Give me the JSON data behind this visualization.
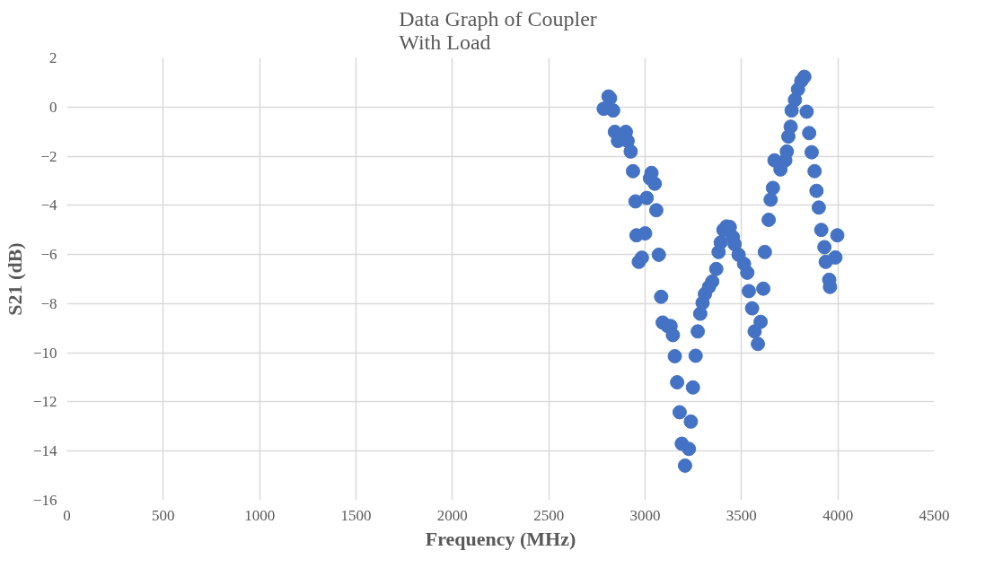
{
  "chart_data": {
    "type": "scatter",
    "title": "Data Graph  of Coupler\nWith Load",
    "xlabel": "Frequency (MHz)",
    "ylabel": "S21 (dB)",
    "xlim": [
      0,
      4500
    ],
    "xticks": [
      0,
      500,
      1000,
      1500,
      2000,
      2500,
      3000,
      3500,
      4000,
      4500
    ],
    "ylim": [
      -16,
      2
    ],
    "yticks": [
      -16,
      -14,
      -12,
      -10,
      -8,
      -6,
      -4,
      -2,
      0,
      2
    ],
    "grid": true,
    "marker": "circle",
    "series": [
      {
        "color": "#4472c4",
        "x": [
          2785,
          2810,
          2818,
          2834,
          2843,
          2859,
          2900,
          2909,
          2925,
          2937,
          2950,
          2955,
          2967,
          2983,
          3000,
          3008,
          3025,
          3033,
          3050,
          3058,
          3071,
          3083,
          3091,
          3116,
          3132,
          3144,
          3154,
          3166,
          3179,
          3190,
          3207,
          3227,
          3237,
          3248,
          3262,
          3273,
          3286,
          3298,
          3310,
          3331,
          3348,
          3369,
          3381,
          3392,
          3406,
          3422,
          3439,
          3455,
          3464,
          3485,
          3513,
          3530,
          3538,
          3555,
          3568,
          3585,
          3599,
          3613,
          3621,
          3641,
          3651,
          3663,
          3671,
          3702,
          3727,
          3735,
          3743,
          3755,
          3760,
          3777,
          3793,
          3810,
          3826,
          3838,
          3851,
          3864,
          3879,
          3889,
          3901,
          3914,
          3930,
          3937,
          3955,
          3959,
          3987,
          3997
        ],
        "values": [
          -0.07,
          0.43,
          0.36,
          -0.14,
          -1.01,
          -1.38,
          -1.01,
          -1.38,
          -1.81,
          -2.61,
          -3.84,
          -5.22,
          -6.3,
          -6.13,
          -5.14,
          -3.7,
          -2.9,
          -2.68,
          -3.12,
          -4.2,
          -6.01,
          -7.72,
          -8.77,
          -8.91,
          -8.91,
          -9.28,
          -10.14,
          -11.2,
          -12.42,
          -13.7,
          -14.59,
          -13.91,
          -12.8,
          -11.41,
          -10.12,
          -9.13,
          -8.41,
          -7.97,
          -7.61,
          -7.32,
          -7.1,
          -6.59,
          -5.9,
          -5.51,
          -5.0,
          -4.86,
          -4.88,
          -5.29,
          -5.58,
          -6.01,
          -6.38,
          -6.74,
          -7.49,
          -8.19,
          -9.13,
          -9.64,
          -8.74,
          -7.39,
          -5.9,
          -4.59,
          -3.77,
          -3.29,
          -2.17,
          -2.54,
          -2.17,
          -1.81,
          -1.2,
          -0.8,
          -0.14,
          0.29,
          0.72,
          1.06,
          1.23,
          -0.19,
          -1.06,
          -1.84,
          -2.61,
          -3.41,
          -4.09,
          -5.0,
          -5.7,
          -6.3,
          -7.03,
          -7.32,
          -6.12,
          -5.22
        ]
      }
    ]
  }
}
